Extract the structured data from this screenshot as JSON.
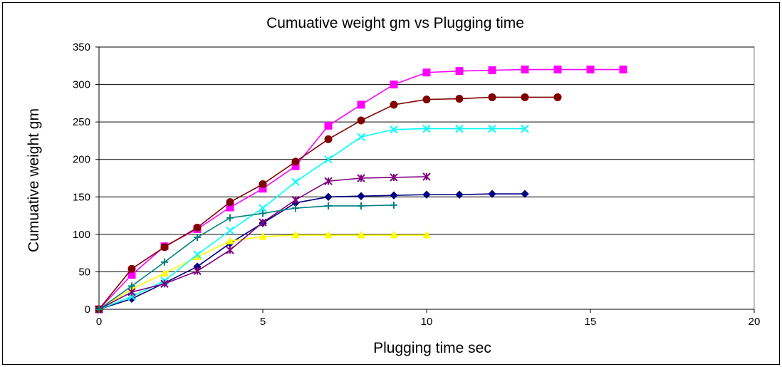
{
  "chart_data": {
    "type": "line",
    "title": "Cumuative weight gm vs Plugging time",
    "xlabel": "Plugging time sec",
    "ylabel": "Cumuative weight gm",
    "xlim": [
      0,
      20
    ],
    "ylim": [
      0,
      350
    ],
    "x_ticks": [
      "0",
      "5",
      "10",
      "15",
      "20"
    ],
    "y_ticks": [
      "0",
      "50",
      "100",
      "150",
      "200",
      "250",
      "300",
      "350"
    ],
    "grid": "horizontal",
    "legend": "none",
    "series": [
      {
        "color": "#000080",
        "marker": "diamond",
        "x": [
          0,
          1,
          2,
          3,
          4,
          5,
          6,
          7,
          8,
          9,
          10,
          11,
          12,
          13
        ],
        "y": [
          0,
          14,
          35,
          57,
          88,
          115,
          142,
          150,
          151,
          152,
          153,
          153,
          154,
          154
        ]
      },
      {
        "color": "#FF00FF",
        "marker": "square",
        "x": [
          0,
          1,
          2,
          3,
          4,
          5,
          6,
          7,
          8,
          9,
          10,
          11,
          12,
          13,
          14,
          15,
          16
        ],
        "y": [
          0,
          46,
          84,
          107,
          136,
          161,
          191,
          245,
          273,
          300,
          316,
          318,
          319,
          320,
          320,
          320,
          320
        ]
      },
      {
        "color": "#FFFF00",
        "marker": "triangle",
        "x": [
          0,
          1,
          2,
          3,
          4,
          5,
          6,
          7,
          8,
          9,
          10
        ],
        "y": [
          0,
          27,
          48,
          70,
          91,
          97,
          99,
          99,
          99,
          99,
          99
        ]
      },
      {
        "color": "#00FFFF",
        "marker": "x",
        "x": [
          0,
          1,
          2,
          3,
          4,
          5,
          6,
          7,
          8,
          9,
          10,
          11,
          12,
          13
        ],
        "y": [
          0,
          17,
          38,
          73,
          105,
          135,
          170,
          200,
          230,
          240,
          241,
          241,
          241,
          241
        ]
      },
      {
        "color": "#800080",
        "marker": "star",
        "x": [
          0,
          1,
          2,
          3,
          4,
          5,
          6,
          7,
          8,
          9,
          10
        ],
        "y": [
          0,
          23,
          34,
          51,
          79,
          116,
          146,
          171,
          175,
          176,
          177
        ]
      },
      {
        "color": "#800000",
        "marker": "circle",
        "x": [
          0,
          1,
          2,
          3,
          4,
          5,
          6,
          7,
          8,
          9,
          10,
          11,
          12,
          13,
          14
        ],
        "y": [
          0,
          54,
          83,
          109,
          143,
          167,
          197,
          227,
          252,
          273,
          280,
          281,
          283,
          283,
          283
        ]
      },
      {
        "color": "#008080",
        "marker": "plus",
        "x": [
          0,
          1,
          2,
          3,
          4,
          5,
          6,
          7,
          8,
          9
        ],
        "y": [
          0,
          31,
          63,
          96,
          122,
          128,
          135,
          138,
          138,
          139
        ]
      }
    ]
  }
}
